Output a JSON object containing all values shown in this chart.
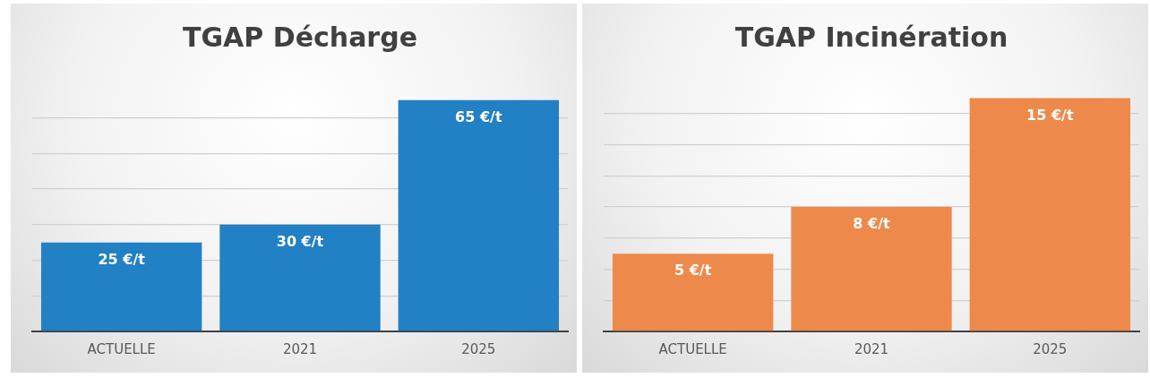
{
  "chart_data": [
    {
      "type": "bar",
      "title": "TGAP Décharge",
      "categories": [
        "ACTUELLE",
        "2021",
        "2025"
      ],
      "values": [
        25,
        30,
        65
      ],
      "color": "#2280c4",
      "value_labels": [
        "25 €/t",
        "30 €/t",
        "65 €/t"
      ],
      "yticks": [
        {
          "value": 0,
          "label": null
        },
        {
          "value": 10,
          "label": null
        },
        {
          "value": 20,
          "label": null
        },
        {
          "value": 30,
          "label": null
        },
        {
          "value": 40,
          "label": null
        },
        {
          "value": 50,
          "label": null
        },
        {
          "value": 60,
          "label": null
        }
      ],
      "grid": "y",
      "tick_labels": "x",
      "relative": false
    },
    {
      "type": "bar",
      "title": "TGAP Incinération",
      "categories": [
        "ACTUELLE",
        "2021",
        "2025"
      ],
      "values": [
        5,
        8,
        15
      ],
      "color": "#ed8a4b",
      "value_labels": [
        "5 €/t",
        "8 €/t",
        "15 €/t"
      ],
      "yticks": [
        {
          "value": 0,
          "label": null
        },
        {
          "value": 2,
          "label": null
        },
        {
          "value": 4,
          "label": null
        },
        {
          "value": 6,
          "label": null
        },
        {
          "value": 8,
          "label": null
        },
        {
          "value": 10,
          "label": null
        },
        {
          "value": 12,
          "label": null
        },
        {
          "value": 14,
          "label": null
        }
      ],
      "grid": "y",
      "tick_labels": "x",
      "relative": false
    }
  ]
}
